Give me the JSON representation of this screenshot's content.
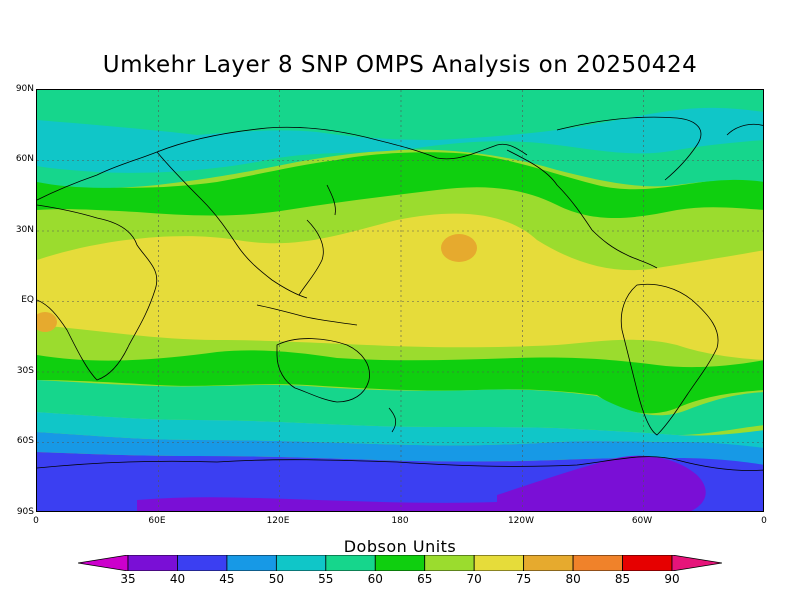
{
  "title": "Umkehr Layer 8 SNP OMPS Analysis on 20250424",
  "y_axis_labels": [
    "90N",
    "60N",
    "30N",
    "EQ",
    "30S",
    "60S",
    "90S"
  ],
  "x_axis_labels": [
    "0",
    "60E",
    "120E",
    "180",
    "120W",
    "60W",
    "0"
  ],
  "colorbar": {
    "title": "Dobson Units",
    "levels": [
      "35",
      "40",
      "45",
      "50",
      "55",
      "60",
      "65",
      "70",
      "75",
      "80",
      "85",
      "90"
    ],
    "colors": [
      "#cc00cc",
      "#7a0fd6",
      "#3b3ff2",
      "#1799e6",
      "#10c6c8",
      "#16d68c",
      "#0fcf0f",
      "#9bdc2e",
      "#e6dc3a",
      "#e6aa2e",
      "#f0822a",
      "#e60000",
      "#e6147a"
    ]
  },
  "chart_data": {
    "type": "heatmap",
    "title": "Umkehr Layer 8 SNP OMPS Analysis on 20250424",
    "units": "Dobson Units",
    "x_range": [
      0,
      360
    ],
    "y_range": [
      -90,
      90
    ],
    "x_ticks": [
      "0",
      "60E",
      "120E",
      "180",
      "120W",
      "60W",
      "0"
    ],
    "y_ticks": [
      "90N",
      "60N",
      "30N",
      "EQ",
      "30S",
      "60S",
      "90S"
    ],
    "grid": true,
    "contour_levels": [
      35,
      40,
      45,
      50,
      55,
      60,
      65,
      70,
      75,
      80,
      85,
      90
    ],
    "zonal_pattern": [
      {
        "lat_range": [
          75,
          90
        ],
        "value_range": [
          55,
          65
        ]
      },
      {
        "lat_range": [
          55,
          75
        ],
        "value_range": [
          50,
          55
        ]
      },
      {
        "lat_range": [
          40,
          55
        ],
        "value_range": [
          60,
          70
        ]
      },
      {
        "lat_range": [
          -20,
          40
        ],
        "value_range": [
          70,
          80
        ]
      },
      {
        "lat_range": [
          -40,
          -20
        ],
        "value_range": [
          60,
          70
        ]
      },
      {
        "lat_range": [
          -60,
          -40
        ],
        "value_range": [
          50,
          60
        ]
      },
      {
        "lat_range": [
          -75,
          -60
        ],
        "value_range": [
          45,
          50
        ]
      },
      {
        "lat_range": [
          -90,
          -75
        ],
        "value_range": [
          35,
          45
        ]
      }
    ]
  }
}
